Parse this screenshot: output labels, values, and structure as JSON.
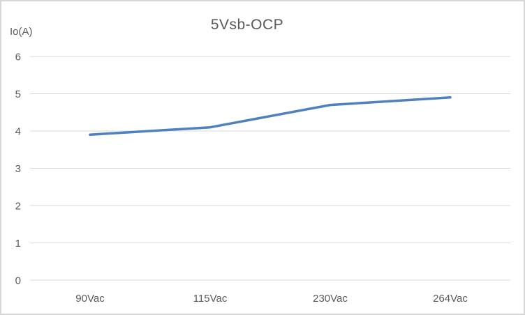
{
  "window": {
    "background": "#ffffff",
    "border_color": "#d7d7d7"
  },
  "chart_data": {
    "type": "line",
    "title": "5Vsb-OCP",
    "ylabel": "Io(A)",
    "xlabel": "",
    "categories": [
      "90Vac",
      "115Vac",
      "230Vac",
      "264Vac"
    ],
    "series": [
      {
        "values": [
          3.9,
          4.1,
          4.7,
          4.9
        ],
        "color": "#4e81bd",
        "marker": "none"
      }
    ],
    "ylim": [
      0,
      6
    ],
    "ytick_step": 1,
    "yticks": [
      0,
      1,
      2,
      3,
      4,
      5,
      6
    ],
    "grid": "horizontal",
    "gridline_color": "#d9d9d9",
    "tick_label_color": "#595959",
    "title_color": "#595959",
    "legend": "none"
  }
}
